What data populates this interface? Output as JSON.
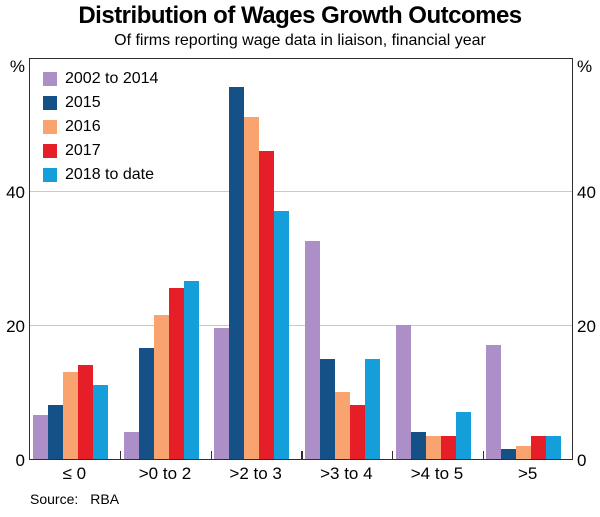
{
  "title": "Distribution of Wages Growth Outcomes",
  "subtitle": "Of firms reporting wage data in liaison, financial year",
  "source_label": "Source:",
  "source_value": "RBA",
  "axis": {
    "unit_label": "%",
    "yticks": [
      0,
      20,
      40
    ],
    "ylim": [
      0,
      60
    ],
    "gridlines": [
      20,
      40
    ]
  },
  "chart_data": {
    "type": "bar",
    "title": "Distribution of Wages Growth Outcomes",
    "subtitle": "Of firms reporting wage data in liaison, financial year",
    "xlabel": "",
    "ylabel": "%",
    "ylim": [
      0,
      60
    ],
    "grid": true,
    "legend_position": "top-left",
    "categories": [
      "≤ 0",
      ">0 to 2",
      ">2 to 3",
      ">3 to 4",
      ">4 to 5",
      ">5"
    ],
    "series": [
      {
        "name": "2002 to 2014",
        "color": "#ab8fc6",
        "values": [
          6.5,
          4,
          19.5,
          32.5,
          20,
          17
        ]
      },
      {
        "name": "2015",
        "color": "#155187",
        "values": [
          8,
          16.5,
          55.5,
          15,
          4,
          1.5
        ]
      },
      {
        "name": "2016",
        "color": "#f9a36f",
        "values": [
          13,
          21.5,
          51,
          10,
          3.5,
          2
        ]
      },
      {
        "name": "2017",
        "color": "#e61e28",
        "values": [
          14,
          25.5,
          46,
          8,
          3.5,
          3.5
        ]
      },
      {
        "name": "2018 to date",
        "color": "#159fda",
        "values": [
          11,
          26.5,
          37,
          15,
          7,
          3.5
        ]
      }
    ]
  }
}
